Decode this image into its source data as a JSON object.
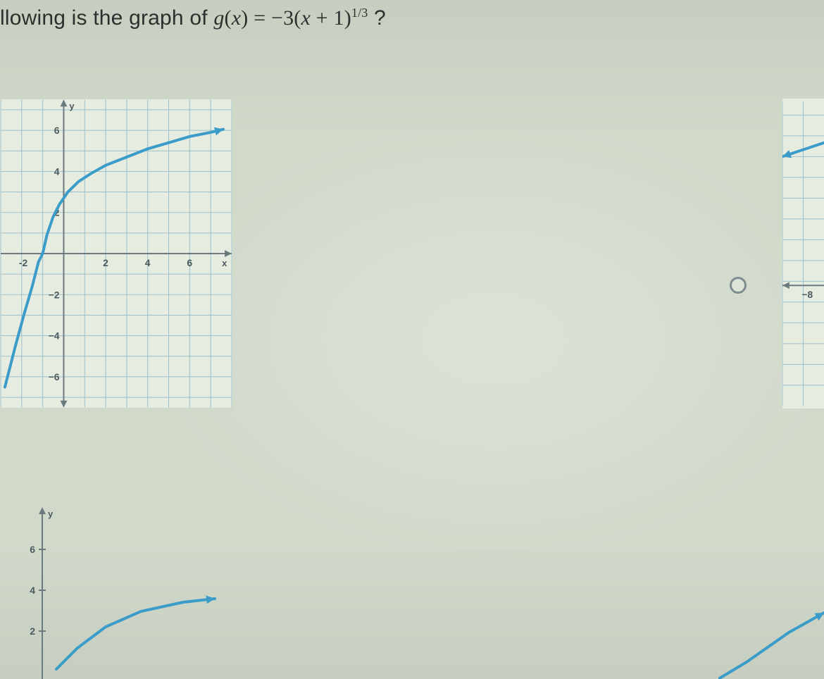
{
  "question": {
    "prefix": "llowing is the graph of ",
    "func_name": "g",
    "func_arg": "x",
    "rhs_prefix": " = −3(",
    "rhs_var": "x",
    "rhs_mid": " + 1)",
    "exponent": "1/3",
    "suffix": " ?"
  },
  "chart_a": {
    "type": "line",
    "grid_color": "#9cc0cb",
    "axis_color": "#6a7a7f",
    "curve_color": "#3b9bc9",
    "background_color": "#e6ece0",
    "xlim": [
      -3,
      8
    ],
    "ylim": [
      -7.5,
      7.5
    ],
    "xticks": [
      -2,
      2,
      4,
      6
    ],
    "yticks": [
      -6,
      -4,
      -2,
      2,
      4,
      6
    ],
    "axis_top_label": "y",
    "axis_right_label": "x",
    "curve_points": [
      [
        -2.8,
        -6.5
      ],
      [
        -2.3,
        -4.5
      ],
      [
        -1.9,
        -3.0
      ],
      [
        -1.5,
        -1.6
      ],
      [
        -1.2,
        -0.4
      ],
      [
        -1.0,
        0.0
      ],
      [
        -0.8,
        0.9
      ],
      [
        -0.5,
        1.8
      ],
      [
        -0.2,
        2.4
      ],
      [
        0.2,
        3.0
      ],
      [
        0.7,
        3.5
      ],
      [
        1.3,
        3.9
      ],
      [
        2.0,
        4.3
      ],
      [
        3.0,
        4.7
      ],
      [
        4.0,
        5.1
      ],
      [
        5.0,
        5.4
      ],
      [
        6.0,
        5.7
      ],
      [
        7.0,
        5.9
      ],
      [
        7.6,
        6.05
      ]
    ],
    "arrow_end": true
  },
  "chart_b": {
    "type": "line-fragment",
    "grid_color": "#9cc0cb",
    "curve_color": "#3b9bc9",
    "background_color": "#e6ece0",
    "visible_xtick_label": "−8",
    "curve_points": [
      [
        60,
        60
      ],
      [
        0,
        80
      ]
    ],
    "axis_y_pos": 266,
    "arrow_left": true
  },
  "radio_b": {
    "checked": false,
    "border_color": "#7e8b8f"
  },
  "chart_c": {
    "type": "line-fragment",
    "grid_color": "#9cc0cb",
    "curve_color": "#3b9bc9",
    "axis_top_label": "y",
    "yticks_visible": [
      6,
      4,
      2
    ],
    "curve_points": [
      [
        80,
        230
      ],
      [
        110,
        200
      ],
      [
        150,
        170
      ],
      [
        200,
        148
      ],
      [
        260,
        135
      ],
      [
        305,
        130
      ]
    ],
    "arrow_end": true,
    "y_axis_x": 60
  },
  "chart_d": {
    "type": "line-fragment",
    "curve_color": "#3b9bc9",
    "curve_points": [
      [
        150,
        50
      ],
      [
        100,
        78
      ],
      [
        40,
        120
      ],
      [
        0,
        144
      ]
    ],
    "arrow_left": true
  }
}
